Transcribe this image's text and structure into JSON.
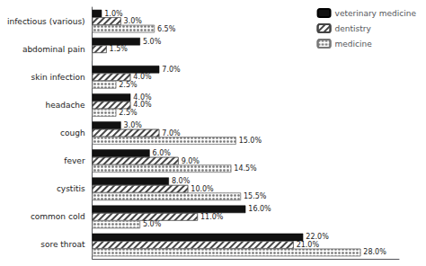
{
  "chart_data": {
    "type": "bar",
    "orientation": "horizontal",
    "categories": [
      "sore throat",
      "common cold",
      "cystitis",
      "fever",
      "cough",
      "headache",
      "skin infection",
      "abdominal pain",
      "infectious (various)"
    ],
    "series": [
      {
        "name": "veterinary medicine",
        "color": "#111111",
        "values": [
          22.0,
          16.0,
          8.0,
          6.0,
          3.0,
          4.0,
          7.0,
          5.0,
          1.0
        ],
        "value_labels": [
          "22.0%",
          "16.0%",
          "8.0%",
          "6.0%",
          "3.0%",
          "4.0%",
          "7.0%",
          "5.0%",
          "1.0%"
        ]
      },
      {
        "name": "dentistry",
        "color": "#ffffff",
        "values": [
          21.0,
          11.0,
          10.0,
          9.0,
          7.0,
          4.0,
          4.0,
          1.5,
          3.0
        ],
        "value_labels": [
          "21.0%",
          "11.0%",
          "10.0%",
          "9.0%",
          "7.0%",
          "4.0%",
          "4.0%",
          "1.5%",
          "3.0%"
        ]
      },
      {
        "name": "medicine",
        "color": "#ffffff",
        "values": [
          28.0,
          5.0,
          15.5,
          14.5,
          15.0,
          2.5,
          2.5,
          0.0,
          6.5
        ],
        "value_labels": [
          "28.0%",
          "5.0%",
          "15.5%",
          "14.5%",
          "15.0%",
          "2.5%",
          "2.5%",
          null,
          "6.5%"
        ]
      }
    ],
    "xlim": [
      0,
      32
    ],
    "data_labels": true,
    "tick_labels": "y",
    "grid": false,
    "legend": "upper right"
  }
}
